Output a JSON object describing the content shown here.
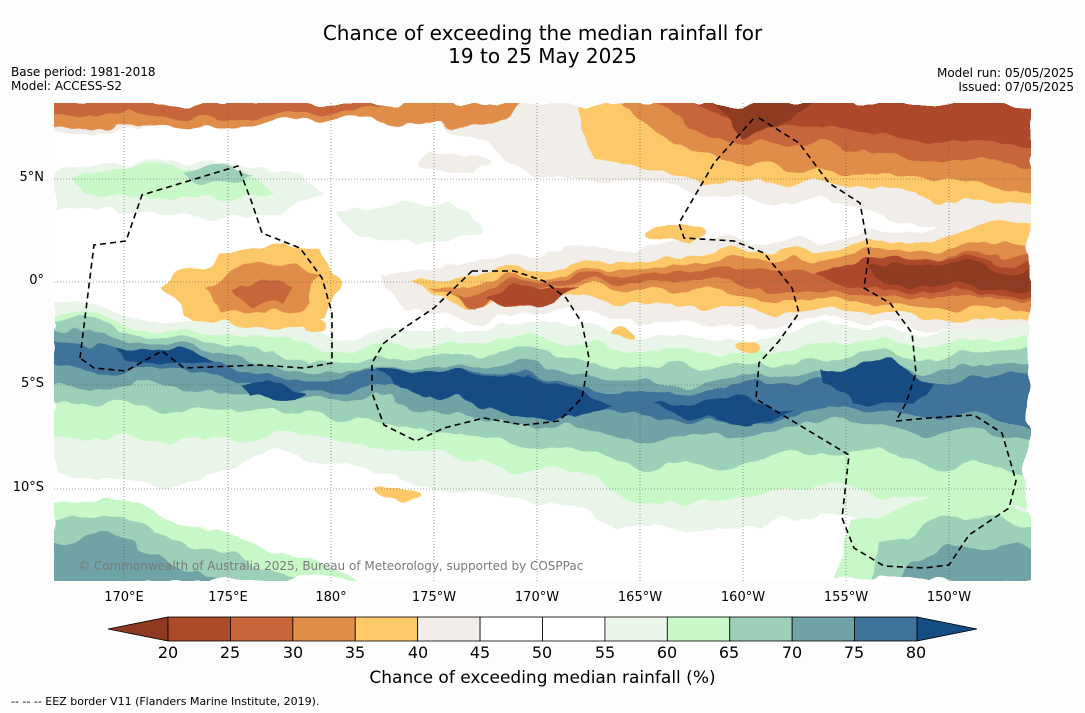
{
  "title": {
    "line1": "Chance of exceeding the median rainfall for",
    "line2": "19 to 25 May 2025"
  },
  "meta": {
    "base_period": "Base period: 1981-2018",
    "model": "Model: ACCESS-S2",
    "model_run": "Model run: 05/05/2025",
    "issued": "Issued: 07/05/2025"
  },
  "map": {
    "lat_labels": [
      "5°N",
      "0°",
      "5°S",
      "10°S"
    ],
    "lon_labels": [
      "170°E",
      "175°E",
      "180°",
      "175°W",
      "170°W",
      "165°W",
      "160°W",
      "155°W",
      "150°W"
    ],
    "copyright": "© Commonwealth of Australia 2025, Bureau of Meteorology, supported by COSPPac",
    "eez_line_color": "#000000"
  },
  "colorbar": {
    "title": "Chance of exceeding median rainfall (%)",
    "ticks": [
      "20",
      "25",
      "30",
      "35",
      "40",
      "45",
      "50",
      "55",
      "60",
      "65",
      "70",
      "75",
      "80"
    ],
    "colors": [
      "#8e3a20",
      "#ad4a2a",
      "#c8663a",
      "#e08d48",
      "#fdc868",
      "#f1ede8",
      "#ffffff",
      "#ffffff",
      "#e8f5e8",
      "#c8f8c8",
      "#9dd0b8",
      "#6fa3a5",
      "#40739a",
      "#144c84"
    ]
  },
  "footnote": "--  --  -- EEZ border V11 (Flanders Marine Institute, 2019)."
}
